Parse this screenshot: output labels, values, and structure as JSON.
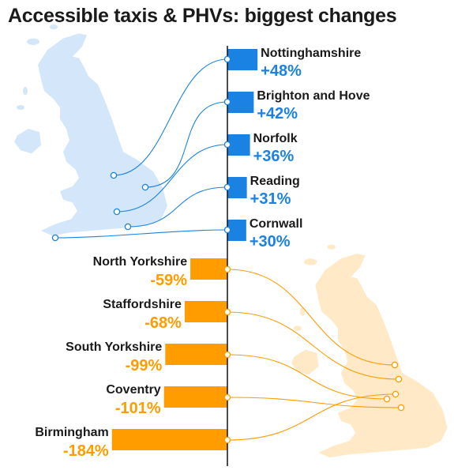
{
  "chart_data": {
    "type": "bar",
    "title": "Accessible taxis & PHVs: biggest changes",
    "colors": {
      "increase": "#1a82e2",
      "decrease": "#ff9c00",
      "map_increase": "#d3e6fa",
      "map_decrease": "#ffe9c6",
      "axis": "#111111"
    },
    "increases": {
      "categories": [
        "Nottinghamshire",
        "Brighton and Hove",
        "Norfolk",
        "Reading",
        "Cornwall"
      ],
      "values": [
        48,
        42,
        36,
        31,
        30
      ],
      "labels": [
        "+48%",
        "+42%",
        "+36%",
        "+31%",
        "+30%"
      ]
    },
    "decreases": {
      "categories": [
        "North Yorkshire",
        "Staffordshire",
        "South Yorkshire",
        "Coventry",
        "Birmingham"
      ],
      "values": [
        -59,
        -68,
        -99,
        -101,
        -184
      ],
      "labels": [
        "-59%",
        "-68%",
        "-99%",
        "-101%",
        "-184%"
      ]
    },
    "map_icons": [
      "uk-map-blue",
      "uk-map-orange"
    ]
  }
}
